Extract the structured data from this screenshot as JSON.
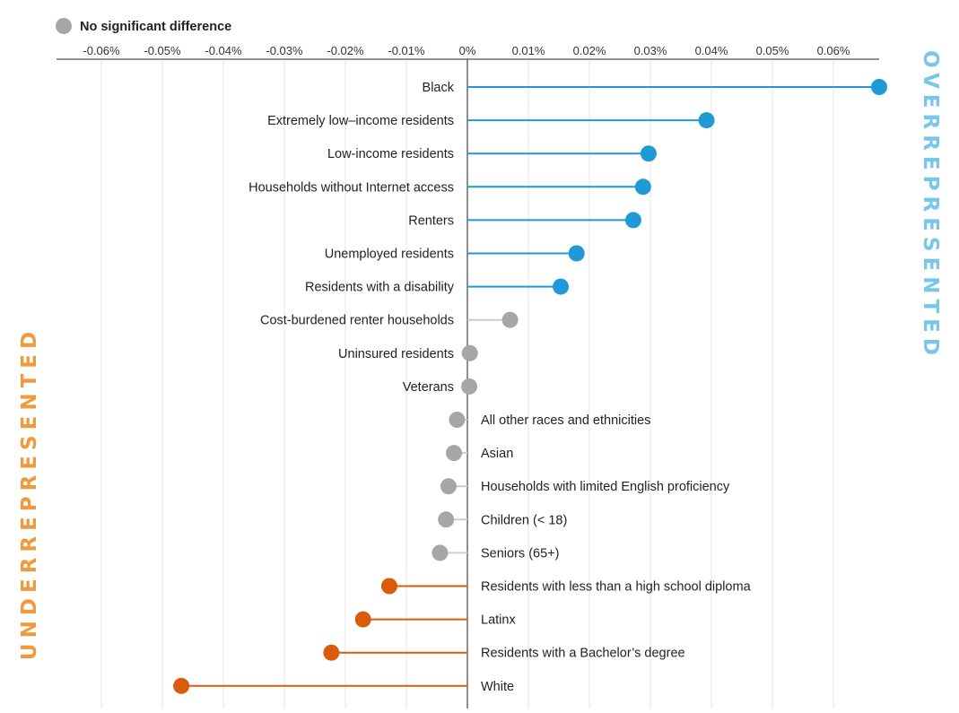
{
  "legend": {
    "ns_label": "No significant difference"
  },
  "side_labels": {
    "over": "OVERREPRESENTED",
    "under": "UNDERREPRESENTED"
  },
  "colors": {
    "over": "#1f9ad6",
    "under": "#d95b0b",
    "ns_dot": "#a6a6a6",
    "ns_line": "#cccccc",
    "over_text": "#79c6ea",
    "under_text": "#f09a3e",
    "grid": "#e6e6e6",
    "axis": "#555555"
  },
  "chart_data": {
    "type": "lollipop",
    "title": "",
    "xlabel": "",
    "ylabel": "",
    "xlim": [
      -0.067,
      0.068
    ],
    "grid": true,
    "legend_position": "top-left",
    "x_ticks": [
      -0.06,
      -0.05,
      -0.04,
      -0.03,
      -0.02,
      -0.01,
      0,
      0.01,
      0.02,
      0.03,
      0.04,
      0.05,
      0.06
    ],
    "x_tick_labels": [
      "-0.06%",
      "-0.05%",
      "-0.04%",
      "-0.03%",
      "-0.02%",
      "-0.01%",
      "0%",
      "0.01%",
      "0.02%",
      "0.03%",
      "0.04%",
      "0.05%",
      "0.06%"
    ],
    "points": [
      {
        "label": "Black",
        "value": 0.0675,
        "status": "over"
      },
      {
        "label": "Extremely low–income residents",
        "value": 0.0392,
        "status": "over"
      },
      {
        "label": "Low-income residents",
        "value": 0.0297,
        "status": "over"
      },
      {
        "label": "Households without Internet access",
        "value": 0.0288,
        "status": "over"
      },
      {
        "label": "Renters",
        "value": 0.0272,
        "status": "over"
      },
      {
        "label": "Unemployed residents",
        "value": 0.0179,
        "status": "over"
      },
      {
        "label": "Residents with a disability",
        "value": 0.0153,
        "status": "over"
      },
      {
        "label": "Cost-burdened renter households",
        "value": 0.007,
        "status": "ns"
      },
      {
        "label": "Uninsured residents",
        "value": 0.0004,
        "status": "ns"
      },
      {
        "label": "Veterans",
        "value": 0.0003,
        "status": "ns"
      },
      {
        "label": "All other races and ethnicities",
        "value": -0.0017,
        "status": "ns"
      },
      {
        "label": "Asian",
        "value": -0.0022,
        "status": "ns"
      },
      {
        "label": "Households with limited English proficiency",
        "value": -0.0031,
        "status": "ns"
      },
      {
        "label": "Children (< 18)",
        "value": -0.0035,
        "status": "ns"
      },
      {
        "label": "Seniors (65+)",
        "value": -0.0045,
        "status": "ns"
      },
      {
        "label": "Residents with less than a high school diploma",
        "value": -0.0128,
        "status": "under"
      },
      {
        "label": "Latinx",
        "value": -0.0171,
        "status": "under"
      },
      {
        "label": "Residents with a Bachelor’s degree",
        "value": -0.0223,
        "status": "under"
      },
      {
        "label": "White",
        "value": -0.0469,
        "status": "under"
      }
    ]
  }
}
